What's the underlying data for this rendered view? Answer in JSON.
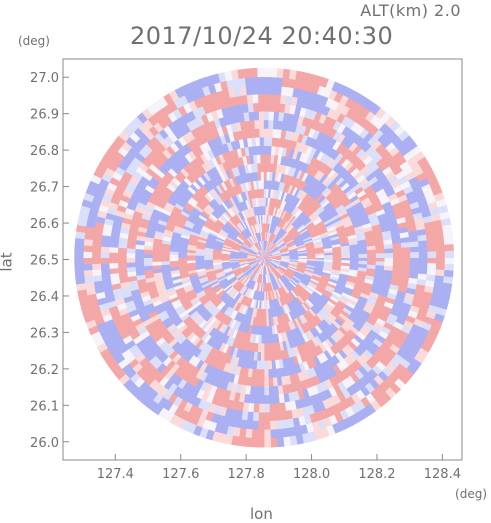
{
  "header": {
    "altitude_label": "ALT(km) 2.0",
    "timestamp": "2017/10/24 20:40:30"
  },
  "chart_data": {
    "type": "heatmap",
    "title": "2017/10/24 20:40:30",
    "subtitle": "ALT(km) 2.0",
    "xlabel": "lon",
    "ylabel": "lat",
    "x_unit": "(deg)",
    "y_unit": "(deg)",
    "xlim": [
      127.24,
      128.46
    ],
    "ylim": [
      25.95,
      27.05
    ],
    "x_ticks": [
      "127.4",
      "127.6",
      "127.8",
      "128.0",
      "128.2",
      "128.4"
    ],
    "y_ticks": [
      "26.0",
      "26.1",
      "26.2",
      "26.3",
      "26.4",
      "26.5",
      "26.6",
      "26.7",
      "26.8",
      "26.9",
      "27.0"
    ],
    "center": {
      "lon": 127.855,
      "lat": 26.505
    },
    "radius_deg_lat": 0.52,
    "grid": false,
    "colors": {
      "positive": "#f4a7a7",
      "negative": "#aab0f2",
      "axis": "#888888",
      "text": "#707070"
    }
  }
}
